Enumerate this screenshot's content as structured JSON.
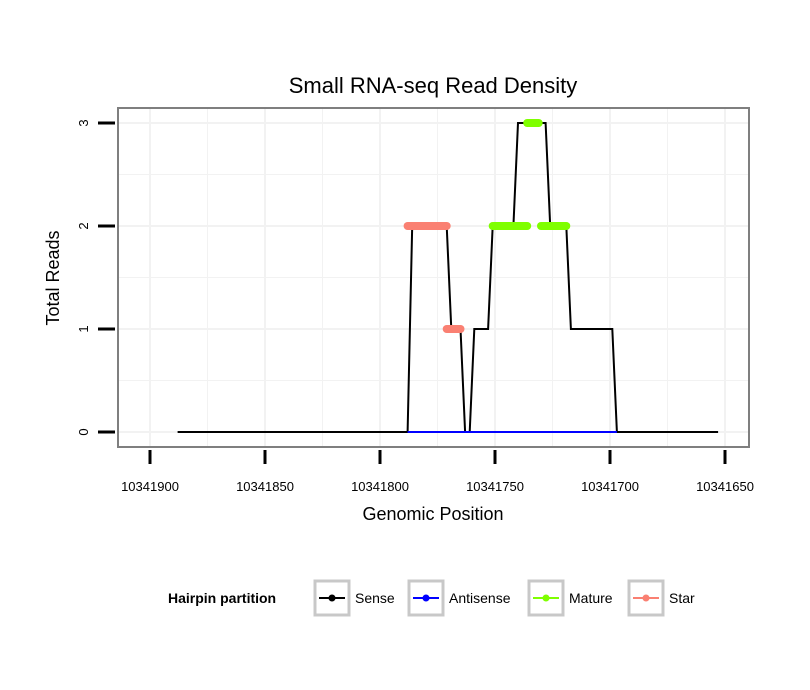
{
  "chart_data": {
    "type": "line",
    "title": "Small RNA-seq Read Density",
    "xlabel": "Genomic Position",
    "ylabel": "Total Reads",
    "x_reversed": true,
    "xlim": [
      10341900,
      10341650
    ],
    "ylim": [
      0,
      3
    ],
    "x_ticks": [
      10341900,
      10341850,
      10341800,
      10341750,
      10341700,
      10341650
    ],
    "x_tick_labels": [
      "10341900",
      "10341850",
      "10341800",
      "10341750",
      "10341700",
      "10341650"
    ],
    "y_ticks": [
      0,
      1,
      2,
      3
    ],
    "y_tick_labels": [
      "0",
      "1",
      "2",
      "3"
    ],
    "grid": true,
    "legend": {
      "title": "Hairpin partition",
      "position": "bottom",
      "entries": [
        {
          "name": "Sense",
          "color": "#000000"
        },
        {
          "name": "Antisense",
          "color": "#0000ff"
        },
        {
          "name": "Mature",
          "color": "#7fff00"
        },
        {
          "name": "Star",
          "color": "#fa8072"
        }
      ]
    },
    "series": [
      {
        "name": "Sense",
        "color": "#000000",
        "x": [
          10341888,
          10341788,
          10341786,
          10341771,
          10341769,
          10341765,
          10341763,
          10341761,
          10341759,
          10341753,
          10341751,
          10341742,
          10341740,
          10341728,
          10341726,
          10341719,
          10341717,
          10341699,
          10341697,
          10341653
        ],
        "y": [
          0,
          0,
          2,
          2,
          1,
          1,
          0,
          0,
          1,
          1,
          2,
          2,
          3,
          3,
          2,
          2,
          1,
          1,
          0,
          0
        ]
      },
      {
        "name": "Antisense",
        "color": "#0000ff",
        "x": [
          10341788,
          10341697
        ],
        "y": [
          0,
          0
        ]
      },
      {
        "name": "Mature",
        "color": "#7fff00",
        "segments": [
          {
            "x": [
              10341751,
              10341736
            ],
            "y": [
              2,
              2
            ]
          },
          {
            "x": [
              10341736,
              10341731
            ],
            "y": [
              3,
              3
            ]
          },
          {
            "x": [
              10341730,
              10341719
            ],
            "y": [
              2,
              2
            ]
          }
        ]
      },
      {
        "name": "Star",
        "color": "#fa8072",
        "segments": [
          {
            "x": [
              10341788,
              10341771
            ],
            "y": [
              2,
              2
            ]
          },
          {
            "x": [
              10341771,
              10341765
            ],
            "y": [
              1,
              1
            ]
          }
        ]
      }
    ]
  }
}
